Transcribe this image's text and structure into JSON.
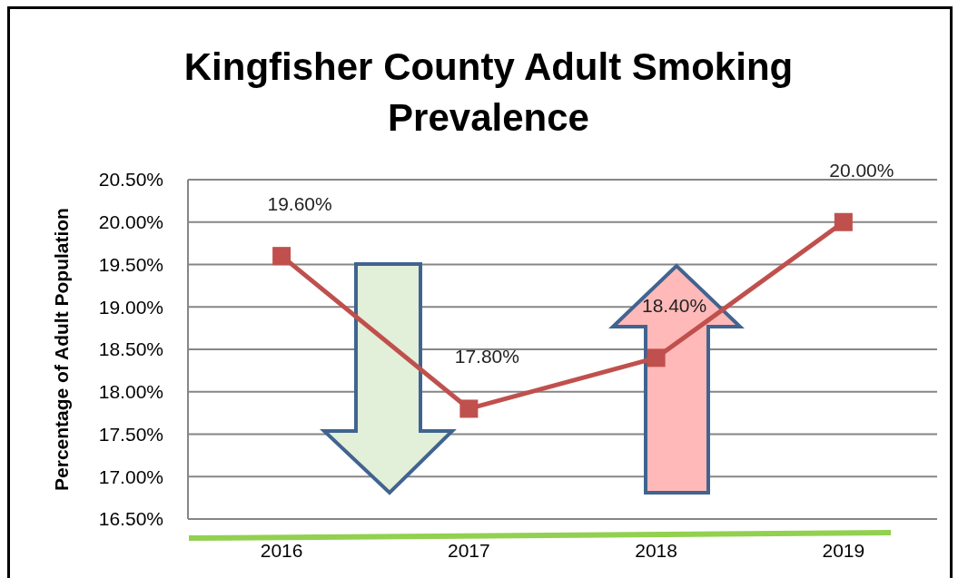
{
  "chart_data": {
    "type": "line",
    "title": "Kingfisher County Adult Smoking Prevalence",
    "ylabel": "Percentage of Adult Population",
    "categories": [
      "2016",
      "2017",
      "2018",
      "2019"
    ],
    "series": [
      {
        "color": "#c0504d",
        "values": [
          19.6,
          17.8,
          18.4,
          20.0
        ],
        "value_labels": [
          "19.60%",
          "17.80%",
          "18.40%",
          "20.00%"
        ]
      }
    ],
    "ylim": [
      16.5,
      20.5
    ],
    "yticks": [
      {
        "value": 16.5,
        "label": "16.50%"
      },
      {
        "value": 17,
        "label": "17.00%"
      },
      {
        "value": 17.5,
        "label": "17.50%"
      },
      {
        "value": 18,
        "label": "18.00%"
      },
      {
        "value": 18.5,
        "label": "18.50%"
      },
      {
        "value": 19,
        "label": "19.00%"
      },
      {
        "value": 19.5,
        "label": "19.50%"
      },
      {
        "value": 20,
        "label": "20.00%"
      },
      {
        "value": 20.5,
        "label": "20.50%"
      }
    ],
    "grid": "y",
    "marker": "square",
    "line_style": "solid"
  }
}
